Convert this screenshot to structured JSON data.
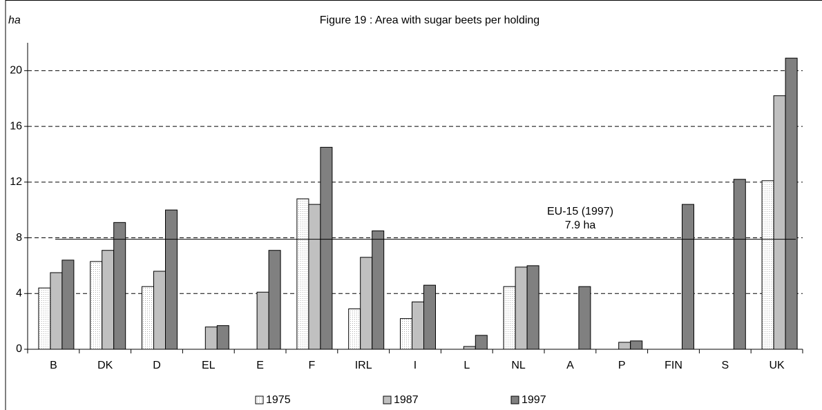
{
  "chart_data": {
    "type": "bar",
    "title": "Figure 19 : Area with sugar beets per holding",
    "y_label": "ha",
    "categories": [
      "B",
      "DK",
      "D",
      "EL",
      "E",
      "F",
      "IRL",
      "I",
      "L",
      "NL",
      "A",
      "P",
      "FIN",
      "S",
      "UK"
    ],
    "series": [
      {
        "name": "1975",
        "color": "#f2f2f2",
        "values": [
          4.4,
          6.3,
          4.5,
          null,
          null,
          10.8,
          2.9,
          2.2,
          null,
          4.5,
          null,
          null,
          null,
          null,
          12.1
        ]
      },
      {
        "name": "1987",
        "color": "#c0c0c0",
        "values": [
          5.5,
          7.1,
          5.6,
          1.6,
          4.1,
          10.4,
          6.6,
          3.4,
          0.2,
          5.9,
          null,
          0.5,
          null,
          null,
          18.2
        ]
      },
      {
        "name": "1997",
        "color": "#808080",
        "values": [
          6.4,
          9.1,
          10.0,
          1.7,
          7.1,
          14.5,
          8.5,
          4.6,
          1.0,
          6.0,
          4.5,
          0.6,
          10.4,
          12.2,
          20.9
        ]
      }
    ],
    "reference_line": {
      "value": 7.9,
      "label": "EU-15 (1997)",
      "value_label": "7.9 ha"
    },
    "ylim": [
      0,
      22
    ],
    "yticks": [
      0,
      4,
      8,
      12,
      16,
      20
    ],
    "grid": true,
    "legend": "bottom"
  }
}
